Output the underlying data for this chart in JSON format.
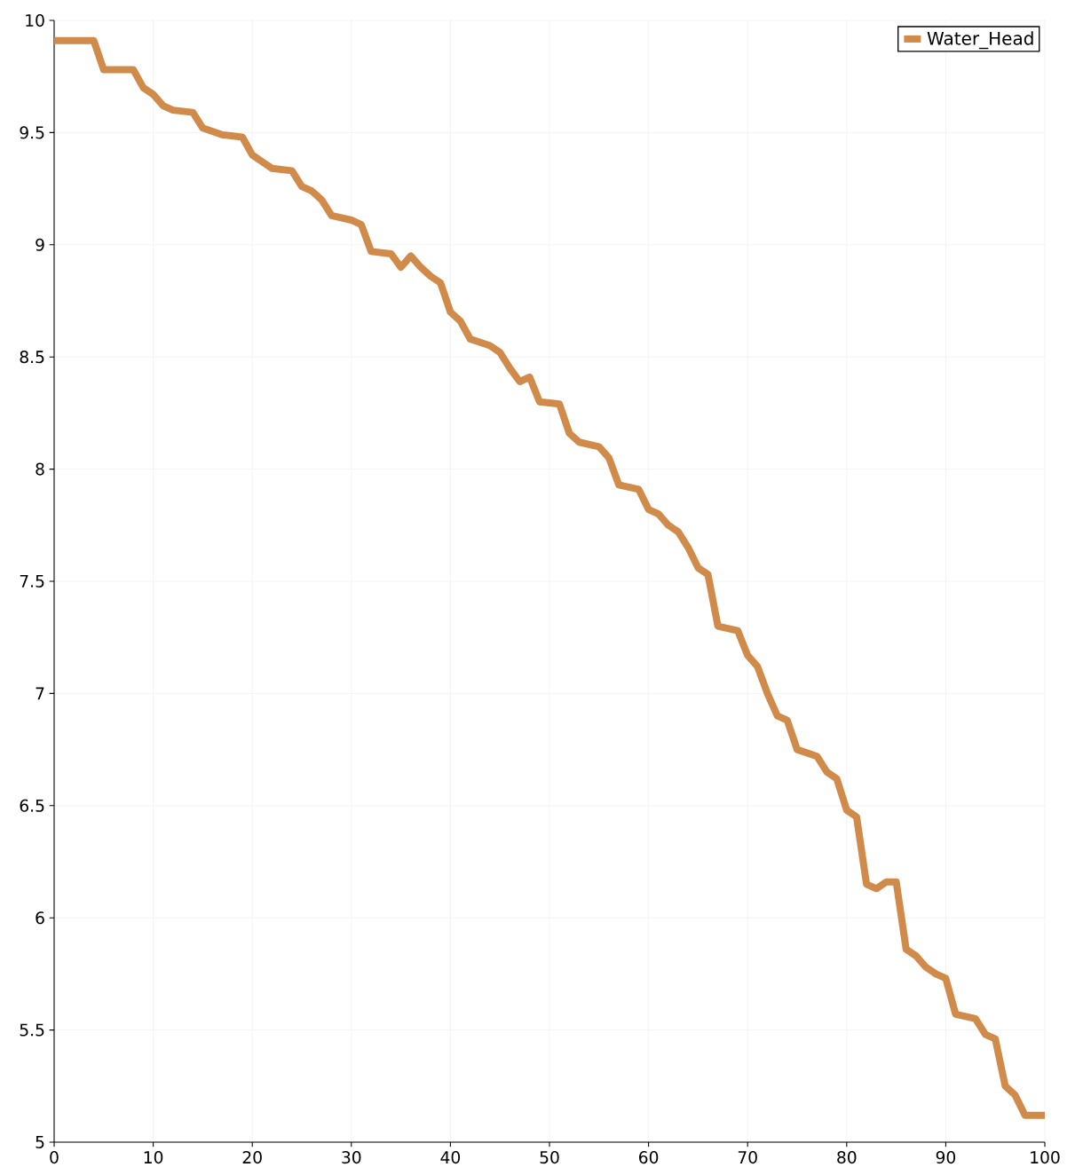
{
  "chart_data": {
    "type": "line",
    "xlim": [
      0,
      100
    ],
    "ylim": [
      5,
      10
    ],
    "xticks": [
      0,
      10,
      20,
      30,
      40,
      50,
      60,
      70,
      80,
      90,
      100
    ],
    "yticks": [
      5,
      5.5,
      6,
      6.5,
      7,
      7.5,
      8,
      8.5,
      9,
      9.5,
      10
    ],
    "grid": true,
    "legend": "top right",
    "line_style": "solid",
    "marker": "none",
    "series": [
      {
        "name": "Water_Head",
        "color": "#d08a4a",
        "x": [
          0,
          4,
          5,
          8,
          9,
          10,
          11,
          12,
          14,
          15,
          17,
          19,
          20,
          21,
          22,
          24,
          25,
          26,
          27,
          28,
          30,
          31,
          32,
          34,
          35,
          36,
          37,
          38,
          39,
          40,
          41,
          42,
          44,
          45,
          46,
          47,
          48,
          49,
          51,
          52,
          53,
          55,
          56,
          57,
          59,
          60,
          61,
          62,
          63,
          64,
          65,
          66,
          67,
          69,
          70,
          71,
          72,
          73,
          74,
          75,
          77,
          78,
          79,
          80,
          81,
          82,
          83,
          84,
          85,
          86,
          87,
          88,
          89,
          90,
          91,
          93,
          94,
          95,
          96,
          97,
          98,
          100
        ],
        "values": [
          9.91,
          9.91,
          9.78,
          9.78,
          9.7,
          9.67,
          9.62,
          9.6,
          9.59,
          9.52,
          9.49,
          9.48,
          9.4,
          9.37,
          9.34,
          9.33,
          9.26,
          9.24,
          9.2,
          9.13,
          9.11,
          9.09,
          8.97,
          8.96,
          8.9,
          8.95,
          8.9,
          8.86,
          8.83,
          8.7,
          8.66,
          8.58,
          8.55,
          8.52,
          8.45,
          8.39,
          8.41,
          8.3,
          8.29,
          8.16,
          8.12,
          8.1,
          8.05,
          7.93,
          7.91,
          7.82,
          7.8,
          7.75,
          7.72,
          7.65,
          7.56,
          7.53,
          7.3,
          7.28,
          7.17,
          7.12,
          7.0,
          6.9,
          6.88,
          6.75,
          6.72,
          6.65,
          6.62,
          6.48,
          6.45,
          6.15,
          6.13,
          6.16,
          6.16,
          5.86,
          5.83,
          5.78,
          5.75,
          5.73,
          5.57,
          5.55,
          5.48,
          5.46,
          5.25,
          5.21,
          5.12,
          5.12
        ]
      }
    ]
  }
}
